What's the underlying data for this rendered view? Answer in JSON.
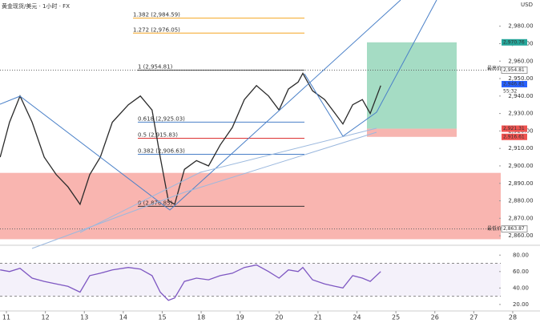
{
  "chart_data": [
    {
      "type": "line",
      "title": "黄金现货/美元 · 1小时 · FX",
      "currency": "USD",
      "x": [
        -0.16,
        0.08,
        0.35,
        0.66,
        0.97,
        1.28,
        1.58,
        1.89,
        2.14,
        2.41,
        2.72,
        3.13,
        3.44,
        3.74,
        3.95,
        4.16,
        4.32,
        4.57,
        4.88,
        5.19,
        5.49,
        5.8,
        6.11,
        6.42,
        6.73,
        7.0,
        7.24,
        7.49,
        7.61,
        7.86,
        8.17,
        8.44,
        8.64,
        8.89,
        9.14,
        9.34,
        9.61
      ],
      "series": [
        {
          "color": "#2a2a2a",
          "values": [
            2905,
            2925,
            2940,
            2925,
            2905,
            2895,
            2888,
            2878,
            2895,
            2905,
            2925,
            2935,
            2940,
            2932,
            2905,
            2880,
            2878,
            2898,
            2903,
            2900,
            2912,
            2922,
            2938,
            2946,
            2940,
            2932,
            2944,
            2948,
            2953,
            2943,
            2938,
            2930,
            2924,
            2935,
            2938,
            2930,
            2946
          ]
        }
      ],
      "xlim": [
        -0.165,
        13.7
      ],
      "xticks": [
        {
          "value": 0,
          "label": "11"
        },
        {
          "value": 1,
          "label": "12"
        },
        {
          "value": 2,
          "label": "13"
        },
        {
          "value": 3,
          "label": "14"
        },
        {
          "value": 4,
          "label": "15"
        },
        {
          "value": 5,
          "label": "18"
        },
        {
          "value": 6,
          "label": "19"
        },
        {
          "value": 7,
          "label": "20"
        },
        {
          "value": 8,
          "label": "21"
        },
        {
          "value": 9,
          "label": "24"
        },
        {
          "value": 10,
          "label": "25"
        },
        {
          "value": 11,
          "label": "26"
        },
        {
          "value": 12,
          "label": "27"
        },
        {
          "value": 13,
          "label": "28"
        }
      ],
      "ylim": [
        2855,
        2995
      ],
      "yticks": [
        {
          "value": 2860,
          "label": "2,860.00"
        },
        {
          "value": 2870,
          "label": "2,870.00"
        },
        {
          "value": 2880,
          "label": "2,880.00"
        },
        {
          "value": 2890,
          "label": "2,890.00"
        },
        {
          "value": 2900,
          "label": "2,900.00"
        },
        {
          "value": 2910,
          "label": "2,910.00"
        },
        {
          "value": 2920,
          "label": "2,920.00"
        },
        {
          "value": 2930,
          "label": "2,930.00"
        },
        {
          "value": 2940,
          "label": "2,940.00"
        },
        {
          "value": 2950,
          "label": "2,950.00"
        },
        {
          "value": 2960,
          "label": "2,960.00"
        },
        {
          "value": 2970,
          "label": "2,970.00"
        },
        {
          "value": 2980,
          "label": "2,980.00"
        }
      ],
      "fib_levels": [
        {
          "value": 2984.59,
          "label": "1.382 (2,984.59)"
        },
        {
          "value": 2976.05,
          "label": "1.272 (2,976.05)"
        },
        {
          "value": 2954.81,
          "label": "1 (2,954.81)"
        },
        {
          "value": 2925.03,
          "label": "0.618 (2,925.03)"
        },
        {
          "value": 2915.83,
          "label": "0.5 (2,915.83)"
        },
        {
          "value": 2906.63,
          "label": "0.382 (2,906.63)"
        },
        {
          "value": 2876.85,
          "label": "0 (2,876.85)"
        }
      ],
      "zone": [
        2858,
        2896
      ],
      "position": {
        "target": 2970.76,
        "entry": 2921.31,
        "stop": 2916.61
      },
      "price_tags": [
        {
          "value": 2970.76,
          "label": "2,970.76",
          "color": "#26a69a"
        },
        {
          "value": 2954.81,
          "label": "2,954.81",
          "color": "#ffffff"
        },
        {
          "value": 2946.81,
          "label": "2,946.81",
          "color": "#2962ff"
        },
        {
          "value": 2921.31,
          "label": "2,921.31",
          "color": "#ef5350"
        },
        {
          "value": 2916.61,
          "label": "2,916.61",
          "color": "#ef5350"
        },
        {
          "value": 2863.87,
          "label": "2,863.87",
          "color": "#ffffff"
        }
      ],
      "high_note": "最高价",
      "low_note": "最低价",
      "countdown": "55:32"
    },
    {
      "type": "line",
      "x": [
        -0.16,
        0.08,
        0.35,
        0.66,
        0.97,
        1.28,
        1.58,
        1.89,
        2.14,
        2.41,
        2.72,
        3.13,
        3.44,
        3.74,
        3.95,
        4.16,
        4.32,
        4.57,
        4.88,
        5.19,
        5.49,
        5.8,
        6.11,
        6.42,
        6.73,
        7.0,
        7.24,
        7.49,
        7.61,
        7.86,
        8.17,
        8.44,
        8.64,
        8.89,
        9.14,
        9.34,
        9.61
      ],
      "series": [
        {
          "color": "#7e57c2",
          "values": [
            62,
            60,
            64,
            52,
            48,
            45,
            42,
            35,
            55,
            58,
            62,
            65,
            63,
            55,
            35,
            25,
            28,
            48,
            52,
            50,
            55,
            58,
            65,
            68,
            60,
            52,
            62,
            60,
            65,
            50,
            45,
            42,
            40,
            55,
            52,
            48,
            60
          ]
        }
      ],
      "xlim": [
        -0.165,
        13.7
      ],
      "ylim": [
        15,
        90
      ],
      "yticks": [
        {
          "value": 20,
          "label": "20.00"
        },
        {
          "value": 40,
          "label": "40.00"
        },
        {
          "value": 60,
          "label": "60.00"
        },
        {
          "value": 80,
          "label": "80.00"
        }
      ],
      "bands": [
        30,
        70
      ]
    }
  ]
}
